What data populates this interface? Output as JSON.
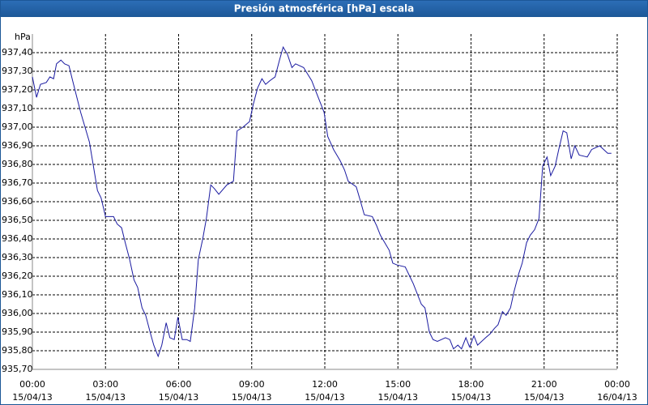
{
  "chart_data": {
    "type": "line",
    "title": "Presión atmosférica [hPa] escala",
    "y_label": "hPa",
    "xlim": [
      0,
      24
    ],
    "xticks": [
      {
        "value": 0,
        "label": "00:00"
      },
      {
        "value": 3,
        "label": "03:00"
      },
      {
        "value": 6,
        "label": "06:00"
      },
      {
        "value": 9,
        "label": "09:00"
      },
      {
        "value": 12,
        "label": "12:00"
      },
      {
        "value": 15,
        "label": "15:00"
      },
      {
        "value": 18,
        "label": "18:00"
      },
      {
        "value": 21,
        "label": "21:00"
      },
      {
        "value": 24,
        "label": "00:00"
      }
    ],
    "xtick_dates": [
      "15/04/13",
      "15/04/13",
      "15/04/13",
      "15/04/13",
      "15/04/13",
      "15/04/13",
      "15/04/13",
      "15/04/13",
      "16/04/13"
    ],
    "ylim": [
      935.7,
      937.5
    ],
    "yticks": [
      {
        "value": 935.7,
        "label": "935,70"
      },
      {
        "value": 935.8,
        "label": "935,80"
      },
      {
        "value": 935.9,
        "label": "935,90"
      },
      {
        "value": 936.0,
        "label": "936,00"
      },
      {
        "value": 936.1,
        "label": "936,10"
      },
      {
        "value": 936.2,
        "label": "936,20"
      },
      {
        "value": 936.3,
        "label": "936,30"
      },
      {
        "value": 936.4,
        "label": "936,40"
      },
      {
        "value": 936.5,
        "label": "936,50"
      },
      {
        "value": 936.6,
        "label": "936,60"
      },
      {
        "value": 936.7,
        "label": "936,70"
      },
      {
        "value": 936.8,
        "label": "936,80"
      },
      {
        "value": 936.9,
        "label": "936,90"
      },
      {
        "value": 937.0,
        "label": "937,00"
      },
      {
        "value": 937.1,
        "label": "937,10"
      },
      {
        "value": 937.2,
        "label": "937,20"
      },
      {
        "value": 937.3,
        "label": "937,30"
      },
      {
        "value": 937.4,
        "label": "937,40"
      }
    ],
    "grid": true,
    "series": [
      {
        "name": "Presión",
        "color": "#1a1aa0",
        "x": [
          0,
          0.17,
          0.33,
          0.57,
          0.72,
          0.87,
          0.99,
          1.17,
          1.32,
          1.5,
          1.65,
          1.98,
          2.34,
          2.67,
          2.82,
          3.0,
          3.33,
          3.48,
          3.66,
          3.81,
          3.99,
          4.17,
          4.32,
          4.5,
          4.65,
          4.83,
          4.98,
          5.16,
          5.31,
          5.49,
          5.64,
          5.82,
          5.97,
          6.15,
          6.33,
          6.48,
          6.66,
          6.81,
          6.99,
          7.14,
          7.32,
          7.47,
          7.65,
          7.98,
          8.25,
          8.4,
          8.64,
          8.91,
          9.06,
          9.24,
          9.42,
          9.57,
          9.75,
          9.96,
          10.14,
          10.29,
          10.47,
          10.65,
          10.8,
          11.13,
          11.46,
          11.64,
          11.97,
          12.12,
          12.36,
          12.63,
          12.81,
          12.96,
          13.29,
          13.47,
          13.62,
          13.95,
          14.13,
          14.28,
          14.46,
          14.64,
          14.79,
          14.97,
          15.3,
          15.63,
          15.78,
          15.96,
          16.11,
          16.29,
          16.44,
          16.62,
          16.95,
          17.13,
          17.28,
          17.46,
          17.61,
          17.79,
          17.94,
          18.12,
          18.27,
          18.6,
          18.78,
          18.96,
          19.11,
          19.29,
          19.44,
          19.62,
          19.77,
          19.95,
          20.1,
          20.28,
          20.43,
          20.61,
          20.79,
          20.94,
          21.12,
          21.27,
          21.45,
          21.6,
          21.78,
          21.93,
          22.11,
          22.26,
          22.44,
          22.77,
          22.95,
          23.28,
          23.61,
          23.76
        ],
        "values": [
          937.27,
          937.16,
          937.23,
          937.24,
          937.27,
          937.26,
          937.34,
          937.36,
          937.34,
          937.33,
          937.25,
          937.08,
          936.92,
          936.66,
          936.62,
          936.52,
          936.52,
          936.48,
          936.46,
          936.38,
          936.29,
          936.18,
          936.14,
          936.03,
          935.99,
          935.9,
          935.83,
          935.77,
          935.83,
          935.95,
          935.87,
          935.86,
          935.98,
          935.86,
          935.86,
          935.85,
          936.03,
          936.29,
          936.4,
          936.51,
          936.69,
          936.67,
          936.64,
          936.69,
          936.71,
          936.98,
          937.0,
          937.03,
          937.12,
          937.21,
          937.26,
          937.23,
          937.25,
          937.27,
          937.36,
          937.43,
          937.39,
          937.32,
          937.34,
          937.32,
          937.25,
          937.19,
          937.08,
          936.95,
          936.88,
          936.82,
          936.77,
          936.71,
          936.68,
          936.6,
          936.53,
          936.52,
          936.47,
          936.42,
          936.38,
          936.34,
          936.27,
          936.26,
          936.25,
          936.16,
          936.11,
          936.05,
          936.03,
          935.9,
          935.86,
          935.85,
          935.87,
          935.86,
          935.81,
          935.83,
          935.81,
          935.87,
          935.82,
          935.88,
          935.83,
          935.87,
          935.89,
          935.92,
          935.94,
          936.01,
          935.99,
          936.03,
          936.12,
          936.21,
          936.27,
          936.38,
          936.42,
          936.45,
          936.51,
          936.79,
          936.84,
          936.74,
          936.79,
          936.88,
          936.98,
          936.97,
          936.83,
          936.9,
          936.85,
          936.84,
          936.88,
          936.9,
          936.86,
          936.86
        ]
      }
    ]
  }
}
